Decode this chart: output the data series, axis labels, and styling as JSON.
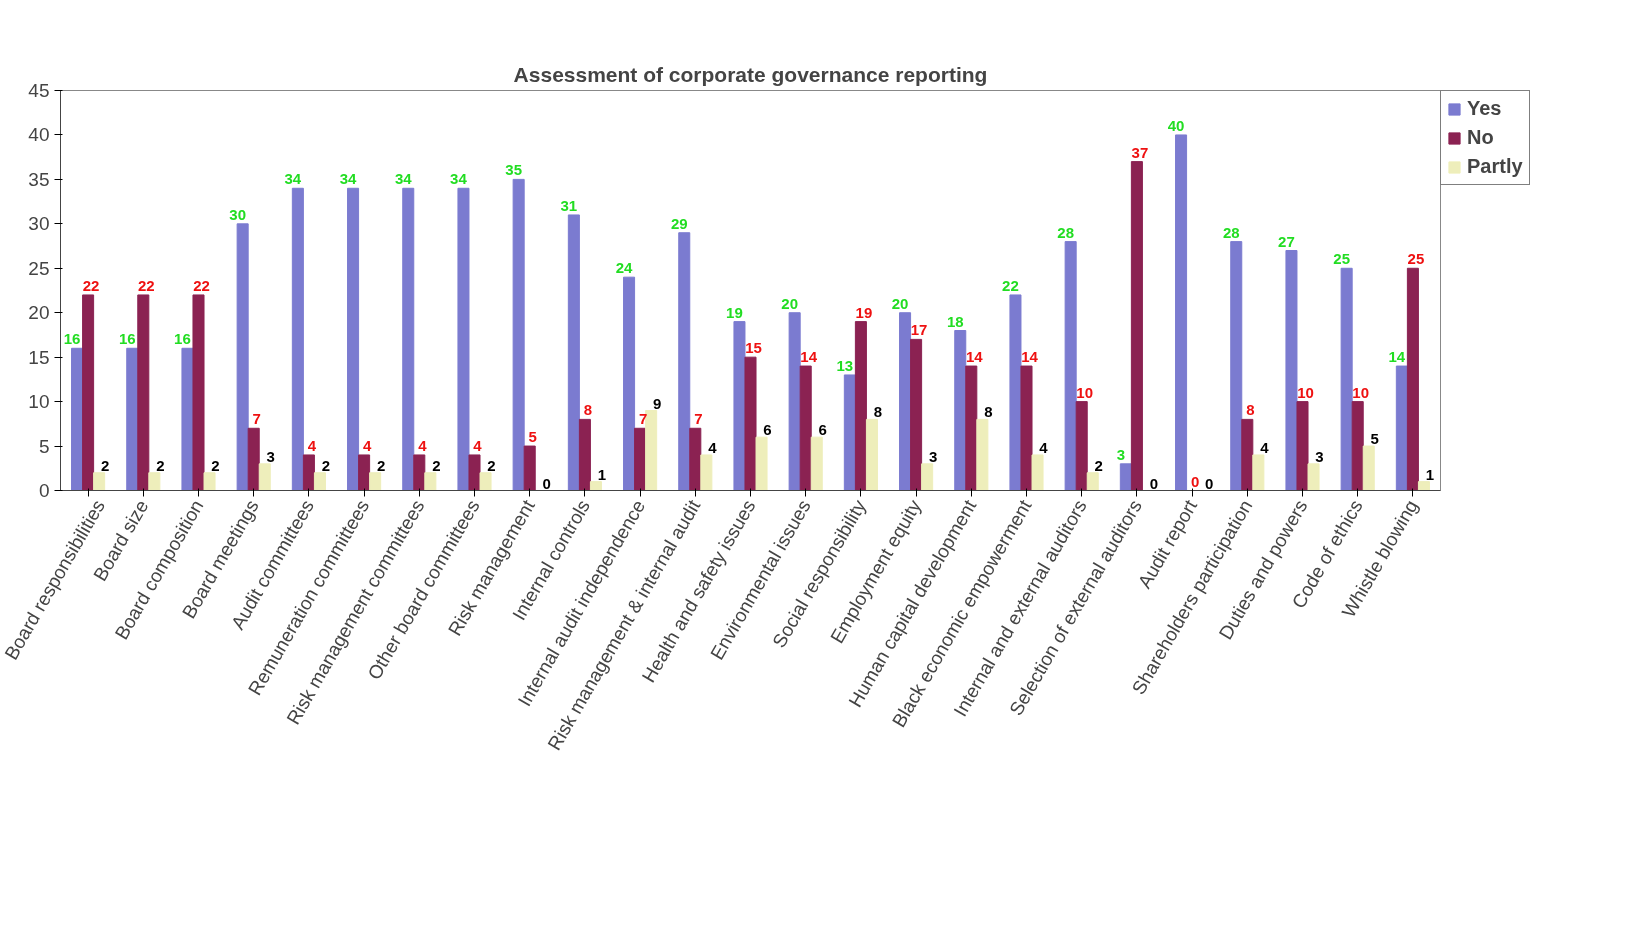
{
  "chart_data": {
    "type": "bar",
    "title": "Assessment of corporate governance reporting",
    "categories": [
      "Board responsibilities",
      "Board size",
      "Board composition",
      "Board meetings",
      "Audit committees",
      "Remuneration committees",
      "Risk management committees",
      "Other board committees",
      "Risk management",
      "Internal controls",
      "Internal audit independence",
      "Risk management & internal audit",
      "Health and safety issues",
      "Environmental issues",
      "Social responsibility",
      "Employment equity",
      "Human capital development",
      "Black economic empowerment",
      "Internal and external auditors",
      "Selection of external auditors",
      "Audit report",
      "Shareholders participation",
      "Duties and powers",
      "Code of ethics",
      "Whistle blowing"
    ],
    "series": [
      {
        "name": "Yes",
        "color": "#7b7bd0",
        "values": [
          16,
          16,
          16,
          30,
          34,
          34,
          34,
          34,
          35,
          31,
          24,
          29,
          19,
          20,
          13,
          20,
          18,
          22,
          28,
          3,
          40,
          28,
          27,
          25,
          14
        ]
      },
      {
        "name": "No",
        "color": "#8b2252",
        "values": [
          22,
          22,
          22,
          7,
          4,
          4,
          4,
          4,
          5,
          8,
          7,
          7,
          15,
          14,
          19,
          17,
          14,
          14,
          10,
          37,
          0,
          8,
          10,
          10,
          25
        ]
      },
      {
        "name": "Partly",
        "color": "#eeeebb",
        "values": [
          2,
          2,
          2,
          3,
          2,
          2,
          2,
          2,
          0,
          1,
          9,
          4,
          6,
          6,
          8,
          3,
          8,
          4,
          2,
          0,
          0,
          4,
          3,
          5,
          1
        ]
      }
    ],
    "ylim": [
      0,
      45
    ],
    "yticks": [
      0,
      5,
      10,
      15,
      20,
      25,
      30,
      35,
      40,
      45
    ],
    "data_labels": true,
    "grid": false,
    "legend": "right"
  }
}
